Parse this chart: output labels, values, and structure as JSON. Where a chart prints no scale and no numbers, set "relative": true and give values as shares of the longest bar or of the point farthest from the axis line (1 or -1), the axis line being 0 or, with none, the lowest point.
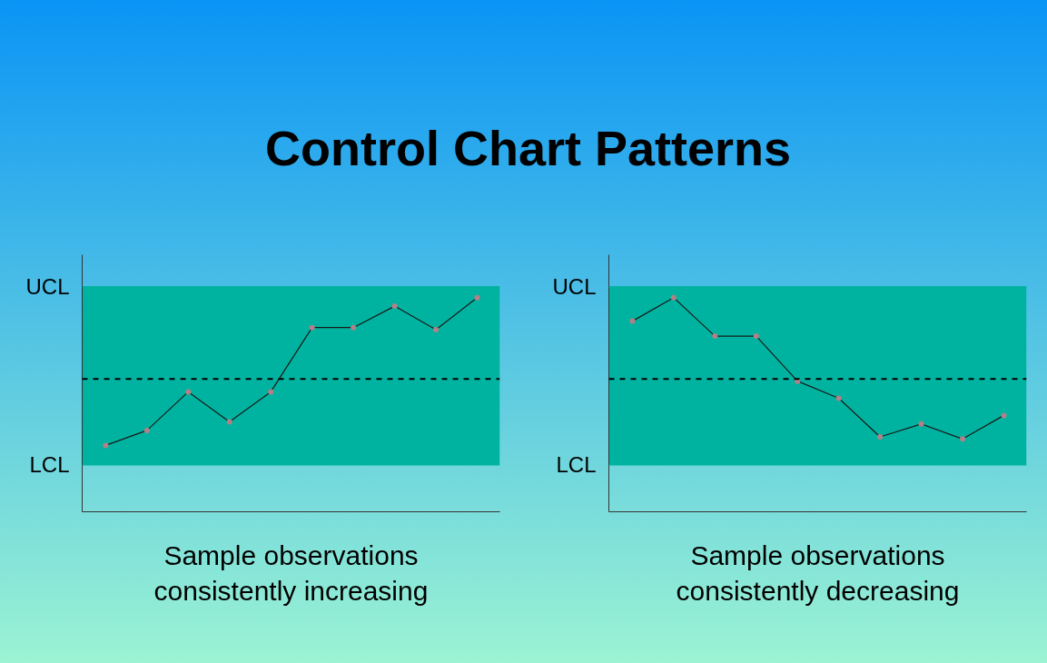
{
  "chart_data": [
    {
      "type": "line",
      "title": "Control Chart Patterns",
      "xlabel": "Sample observations\nconsistently increasing",
      "relative": true,
      "categories": [
        null,
        null,
        null,
        null,
        null,
        null,
        null,
        null,
        null,
        null
      ],
      "series": [
        {
          "color": "#1a1a1a",
          "values": [
            0.31,
            0.38,
            0.56,
            0.42,
            0.56,
            0.86,
            0.86,
            0.96,
            0.85,
            1.0
          ]
        }
      ],
      "marker": "circle",
      "line_style": "solid",
      "grid": false,
      "tick_labels": false,
      "bands": [
        {
          "axis": "y",
          "from": 0.22,
          "to": 1.05,
          "color": "#00b3a0"
        }
      ],
      "ref_lines": [
        {
          "axis": "y",
          "value": 0.62,
          "line_style": "dashed",
          "color": "#000000"
        },
        {
          "axis": "y",
          "value": 1.05,
          "label": "UCL",
          "color": "#00b3a0"
        },
        {
          "axis": "y",
          "value": 0.22,
          "label": "LCL",
          "color": "#00b3a0"
        }
      ]
    },
    {
      "type": "line",
      "xlabel": "Sample observations\nconsistently decreasing",
      "relative": true,
      "categories": [
        null,
        null,
        null,
        null,
        null,
        null,
        null,
        null,
        null,
        null
      ],
      "series": [
        {
          "color": "#1a1a1a",
          "values": [
            0.89,
            1.0,
            0.82,
            0.82,
            0.61,
            0.53,
            0.35,
            0.41,
            0.34,
            0.45
          ]
        }
      ],
      "marker": "circle",
      "line_style": "solid",
      "grid": false,
      "tick_labels": false,
      "bands": [
        {
          "axis": "y",
          "from": 0.22,
          "to": 1.05,
          "color": "#00b3a0"
        }
      ],
      "ref_lines": [
        {
          "axis": "y",
          "value": 0.62,
          "line_style": "dashed",
          "color": "#000000"
        },
        {
          "axis": "y",
          "value": 1.05,
          "label": "UCL",
          "color": "#00b3a0"
        },
        {
          "axis": "y",
          "value": 0.22,
          "label": "LCL",
          "color": "#00b3a0"
        }
      ]
    }
  ]
}
